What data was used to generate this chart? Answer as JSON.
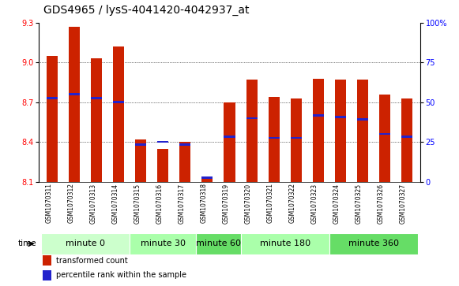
{
  "title": "GDS4965 / lysS-4041420-4042937_at",
  "samples": [
    "GSM1070311",
    "GSM1070312",
    "GSM1070313",
    "GSM1070314",
    "GSM1070315",
    "GSM1070316",
    "GSM1070317",
    "GSM1070318",
    "GSM1070319",
    "GSM1070320",
    "GSM1070321",
    "GSM1070322",
    "GSM1070323",
    "GSM1070324",
    "GSM1070325",
    "GSM1070326",
    "GSM1070327"
  ],
  "bar_values": [
    9.05,
    9.27,
    9.03,
    9.12,
    8.42,
    8.35,
    8.4,
    8.12,
    8.7,
    8.87,
    8.74,
    8.73,
    8.88,
    8.87,
    8.87,
    8.76,
    8.73
  ],
  "percentile_values": [
    8.73,
    8.76,
    8.73,
    8.7,
    8.38,
    8.4,
    8.38,
    8.13,
    8.44,
    8.58,
    8.43,
    8.43,
    8.6,
    8.59,
    8.57,
    8.46,
    8.44
  ],
  "ymin": 8.1,
  "ymax": 9.3,
  "y_ticks": [
    8.1,
    8.4,
    8.7,
    9.0,
    9.3
  ],
  "right_y_ticks": [
    0,
    25,
    50,
    75,
    100
  ],
  "bar_color": "#cc2200",
  "percentile_color": "#2222cc",
  "groups": [
    {
      "label": "minute 0",
      "start": 0,
      "end": 4,
      "color": "#ccffcc"
    },
    {
      "label": "minute 30",
      "start": 4,
      "end": 7,
      "color": "#aaffaa"
    },
    {
      "label": "minute 60",
      "start": 7,
      "end": 9,
      "color": "#66dd66"
    },
    {
      "label": "minute 180",
      "start": 9,
      "end": 13,
      "color": "#aaffaa"
    },
    {
      "label": "minute 360",
      "start": 13,
      "end": 17,
      "color": "#66dd66"
    }
  ],
  "time_label": "time",
  "legend_items": [
    {
      "label": "transformed count",
      "color": "#cc2200"
    },
    {
      "label": "percentile rank within the sample",
      "color": "#2222cc"
    }
  ],
  "bar_width": 0.5,
  "title_fontsize": 10,
  "tick_fontsize": 7,
  "label_fontsize": 7.5,
  "group_label_fontsize": 8,
  "sample_bg_color": "#cccccc"
}
